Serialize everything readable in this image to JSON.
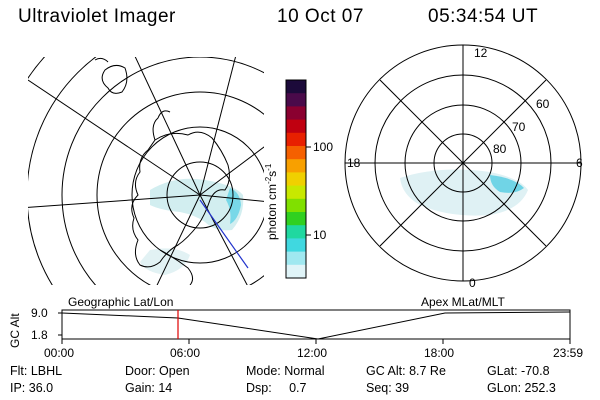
{
  "header": {
    "instrument": "Ultraviolet Imager",
    "date": "10 Oct 07",
    "time": "05:34:54 UT"
  },
  "colorbar": {
    "label": "photon cm",
    "label_exp1": "-2",
    "label_mid": "s",
    "label_exp2": "-1",
    "ticks": [
      "100",
      "10"
    ],
    "colors": [
      "#1c0a3a",
      "#4a0a4a",
      "#8a0030",
      "#c00010",
      "#e82000",
      "#f56000",
      "#f8a000",
      "#f0d000",
      "#c8e800",
      "#80e000",
      "#30d020",
      "#20d8a0",
      "#40d8e0",
      "#a0e8f0",
      "#e0f4f8"
    ]
  },
  "geo_panel": {
    "label": "Geographic Lat/Lon"
  },
  "polar_panel": {
    "label": "Apex MLat/MLT",
    "mlt_labels": [
      "12",
      "18",
      "6",
      "0"
    ],
    "lat_labels": [
      "60",
      "70",
      "80"
    ]
  },
  "timeline": {
    "ylabel": "GC Alt",
    "ytick_top": "9.0",
    "ytick_bottom": "1.8",
    "xticks": [
      "00:00",
      "06:00",
      "12:00",
      "18:00",
      "23:59"
    ],
    "current_time_color": "#e00000"
  },
  "info": {
    "filter": "Flt: LBHL",
    "ip": "IP: 36.0",
    "door": "Door: Open",
    "gain": "Gain: 14",
    "mode": "Mode: Normal",
    "dsp": "Dsp:     0.7",
    "gc_alt": "GC Alt: 8.7 Re",
    "seq": "Seq: 39",
    "glat": "GLat: -70.8",
    "glon": "GLon: 252.3"
  }
}
